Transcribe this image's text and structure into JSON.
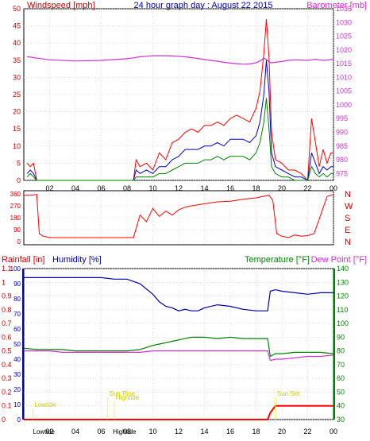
{
  "title": "24 hour graph day : August 22 2015",
  "colors": {
    "wind": "#ff0000",
    "wind_avg": "#0000cc",
    "wind_low": "#008000",
    "baro": "#cc33cc",
    "humidity": "#0000aa",
    "temperature": "#008000",
    "dewpoint": "#cc33cc",
    "rain": "#ff0000",
    "tide": "#ffff00",
    "grid": "#cccccc"
  },
  "x_ticks": [
    "02",
    "04",
    "06",
    "08",
    "10",
    "12",
    "14",
    "16",
    "18",
    "20",
    "22",
    "00"
  ],
  "chart_data": [
    {
      "type": "line",
      "title": "24 hour graph day : August 22 2015",
      "y1label": "Windspeed [mph]",
      "y2label": "Barometer [mb]",
      "y1lim": [
        0,
        50
      ],
      "y2lim": [
        972.5,
        1035
      ],
      "y1_ticks": [
        "0",
        "5",
        "10",
        "15",
        "20",
        "25",
        "30",
        "35",
        "40",
        "45",
        "50"
      ],
      "y2_ticks": [
        "975",
        "980",
        "985",
        "990",
        "995",
        "1000",
        "1005",
        "1010",
        "1015",
        "1020",
        "1025",
        "1030",
        "1035"
      ],
      "x_hours": [
        0.25,
        0.5,
        0.75,
        1,
        1.5,
        2,
        4,
        6,
        8,
        8.3,
        8.5,
        8.7,
        9,
        9.5,
        10,
        10.5,
        11,
        11.5,
        12,
        12.5,
        13,
        13.5,
        14,
        14.5,
        15,
        15.5,
        16,
        16.5,
        17,
        17.5,
        18,
        18.3,
        18.6,
        18.8,
        19,
        19.2,
        19.5,
        20,
        20.5,
        21,
        21.5,
        22,
        22.3,
        22.6,
        22.9,
        23.2,
        23.5,
        23.8,
        24
      ],
      "series": [
        {
          "name": "gust",
          "values": [
            5,
            4,
            5,
            0,
            0,
            0,
            0,
            0,
            0,
            0,
            0,
            6,
            4,
            5,
            3,
            8,
            6,
            11,
            12,
            14,
            15,
            14,
            16,
            16,
            17,
            16,
            18,
            19,
            18,
            17,
            21,
            26,
            37,
            47,
            36,
            14,
            6,
            5,
            3,
            3,
            2,
            0,
            18,
            11,
            4,
            9,
            5,
            8,
            8
          ]
        },
        {
          "name": "average",
          "values": [
            2,
            3,
            2,
            0,
            0,
            0,
            0,
            0,
            0,
            0,
            0,
            3,
            2,
            3,
            2,
            4,
            4,
            6,
            7,
            9,
            9,
            9,
            10,
            10,
            11,
            10,
            12,
            12,
            12,
            11,
            13,
            17,
            25,
            35,
            26,
            8,
            4,
            3,
            2,
            1,
            1,
            0,
            8,
            5,
            2,
            4,
            3,
            4,
            4
          ]
        },
        {
          "name": "low",
          "values": [
            1,
            2,
            1,
            0,
            0,
            0,
            0,
            0,
            0,
            0,
            0,
            1,
            1,
            1,
            1,
            2,
            2,
            3,
            4,
            5,
            5,
            5,
            6,
            6,
            7,
            6,
            7,
            7,
            7,
            6,
            8,
            11,
            17,
            24,
            15,
            4,
            2,
            1,
            1,
            0,
            0,
            0,
            4,
            2,
            1,
            2,
            1,
            2,
            2
          ]
        },
        {
          "name": "barometer",
          "values": [
            1017.5,
            1017.4,
            1017.2,
            1017,
            1016.7,
            1016.4,
            1016,
            1016.2,
            1016.8,
            1017,
            1017.1,
            1017.3,
            1017.5,
            1017.7,
            1017.9,
            1017.9,
            1017.9,
            1017.8,
            1017.7,
            1017.5,
            1017.2,
            1016.9,
            1016.5,
            1016.2,
            1015.9,
            1015.5,
            1015.2,
            1015,
            1014.8,
            1014.9,
            1015.3,
            1016,
            1017,
            1016.5,
            1015.6,
            1015.3,
            1015.5,
            1015.8,
            1016.2,
            1016.4,
            1016.3,
            1016.2,
            1016.4,
            1016.6,
            1016.4,
            1016.2,
            1016.3,
            1016.5,
            1016.4
          ]
        }
      ]
    },
    {
      "type": "line",
      "title": "",
      "ylabels_left": [
        "0",
        "90",
        "180",
        "270",
        "360"
      ],
      "ylabels_right": [
        "N",
        "E",
        "S",
        "W",
        "N"
      ],
      "ylim": [
        0,
        360
      ],
      "x_hours": [
        0,
        0.5,
        1,
        1.2,
        1.5,
        2,
        4,
        6,
        8,
        8.5,
        9,
        9.5,
        10,
        10.5,
        11,
        11.5,
        12,
        12.5,
        13,
        14,
        15,
        16,
        17,
        18,
        18.5,
        19,
        19.3,
        19.6,
        20,
        20.5,
        21,
        21.5,
        22,
        22.5,
        23,
        23.5,
        24
      ],
      "series": [
        {
          "name": "direction",
          "values": [
            350,
            350,
            355,
            60,
            40,
            30,
            30,
            30,
            30,
            30,
            200,
            150,
            250,
            190,
            230,
            200,
            240,
            260,
            270,
            285,
            300,
            305,
            320,
            330,
            340,
            350,
            310,
            60,
            40,
            30,
            50,
            40,
            45,
            60,
            200,
            340,
            355
          ]
        }
      ]
    },
    {
      "type": "line",
      "title": "",
      "y_rain_label": "Rainfall [in]",
      "y_hum_label": "Humidity [%]",
      "y_temp_label": "Temperature [°F]",
      "y_dew_label": "Dew Point [°F]",
      "y_rain_ticks": [
        "0",
        "0.1",
        "0.2",
        "0.3",
        "0.4",
        "0.5",
        "0.6",
        "0.7",
        "0.8",
        "0.9",
        "1",
        "1.1"
      ],
      "y_hum_ticks": [
        "0",
        "10",
        "20",
        "30",
        "40",
        "50",
        "60",
        "70",
        "80",
        "90",
        "100"
      ],
      "y_temp_ticks": [
        "30",
        "40",
        "50",
        "60",
        "70",
        "80",
        "90",
        "100",
        "110",
        "120",
        "130",
        "140"
      ],
      "ylim_temp": [
        30,
        140
      ],
      "ylim_humidity": [
        0,
        100
      ],
      "ylim_rain": [
        0,
        1.1
      ],
      "x_hours": [
        0,
        1,
        2,
        3,
        4,
        5,
        6,
        7,
        8,
        9,
        10,
        10.5,
        11,
        11.5,
        12,
        12.5,
        13,
        13.5,
        14,
        15,
        16,
        17,
        18,
        18.9,
        19.1,
        19.5,
        20,
        21,
        22,
        23,
        24
      ],
      "series": [
        {
          "name": "temperature",
          "values": [
            82,
            81,
            81,
            81,
            80,
            80,
            80,
            80,
            80,
            81,
            84,
            85,
            86,
            87,
            88,
            89,
            90,
            90,
            90,
            89,
            90,
            89,
            89,
            89,
            76,
            78,
            78,
            79,
            79,
            79,
            78
          ]
        },
        {
          "name": "humidity",
          "values": [
            94,
            94,
            94,
            94,
            94,
            94,
            94,
            93,
            93,
            90,
            83,
            78,
            75,
            74,
            72,
            73,
            72,
            72,
            74,
            76,
            75,
            73,
            72,
            72,
            85,
            86,
            85,
            84,
            83,
            84,
            84
          ]
        },
        {
          "name": "dewpoint",
          "values": [
            80,
            80,
            80,
            79,
            79,
            79,
            79,
            79,
            79,
            79,
            80,
            80,
            80,
            80,
            80,
            80,
            80,
            80,
            80,
            80,
            80,
            80,
            80,
            80,
            73,
            74,
            74,
            75,
            76,
            76,
            77
          ]
        },
        {
          "name": "rainfall",
          "values": [
            0,
            0,
            0,
            0,
            0,
            0,
            0,
            0,
            0,
            0,
            0,
            0,
            0,
            0,
            0,
            0,
            0,
            0,
            0,
            0,
            0,
            0,
            0,
            0,
            0.05,
            0.1,
            0.1,
            0.1,
            0.1,
            0.1,
            0.1
          ]
        }
      ],
      "annotations": [
        {
          "text": "Lowtide",
          "hour": 0.7
        },
        {
          "text": "Hightide",
          "hour": 7.0
        },
        {
          "text": "Sun Rise",
          "hour": 6.5
        },
        {
          "text": "Sun Set",
          "hour": 19.5
        }
      ],
      "bottom_labels": [
        {
          "text": "Lowtide",
          "hour": 0.7
        },
        {
          "text": "Hightide",
          "hour": 6.9
        }
      ]
    }
  ]
}
